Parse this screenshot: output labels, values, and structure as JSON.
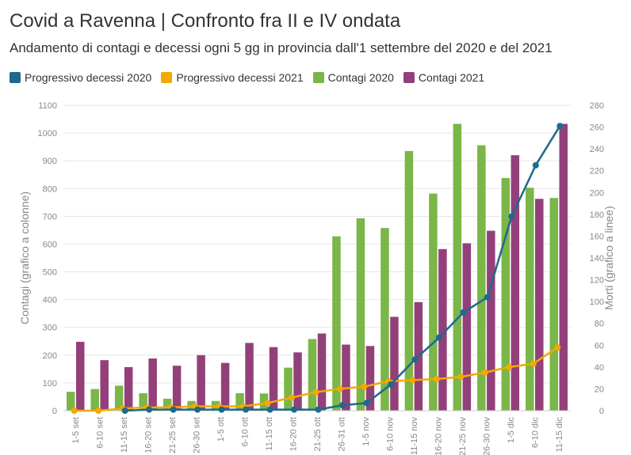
{
  "header": {
    "title": "Covid a Ravenna | Confronto fra II e IV ondata",
    "subtitle": "Andamento di contagi e decessi ogni 5 gg in provincia dall'1 settembre del 2020 e del 2021"
  },
  "legend": [
    {
      "label": "Progressivo decessi 2020",
      "color": "#1e6a8d"
    },
    {
      "label": "Progressivo decessi 2021",
      "color": "#f2a900"
    },
    {
      "label": "Contagi 2020",
      "color": "#7ab648"
    },
    {
      "label": "Contagi 2021",
      "color": "#93407a"
    }
  ],
  "chart_data": {
    "type": "bar",
    "categories": [
      "1-5 set",
      "6-10 set",
      "11-15 set",
      "16-20 set",
      "21-25 set",
      "26-30 set",
      "1-5 ott",
      "6-10 ott",
      "11-15 ott",
      "16-20 ott",
      "21-25 ott",
      "26-31 ott",
      "1-5 nov",
      "6-10 nov",
      "11-15 nov",
      "16-20 nov",
      "21-25 nov",
      "26-30 nov",
      "1-5 dic",
      "6-10 dic",
      "11-15 dic"
    ],
    "ylabel": "Contagi (grafico a colonne)",
    "y2label": "Morti (grafico a linee)",
    "ylim": [
      0,
      1100
    ],
    "y2lim": [
      0,
      280
    ],
    "yticks": [
      0,
      100,
      200,
      300,
      400,
      500,
      600,
      700,
      800,
      900,
      1000,
      1100
    ],
    "y2ticks": [
      0,
      20,
      40,
      60,
      80,
      100,
      120,
      140,
      160,
      180,
      200,
      220,
      240,
      260,
      280
    ],
    "bar_series": [
      {
        "name": "Contagi 2020",
        "color": "#7ab648",
        "values": [
          68,
          78,
          90,
          63,
          43,
          35,
          35,
          63,
          62,
          155,
          258,
          628,
          693,
          658,
          935,
          782,
          1033,
          956,
          838,
          803,
          766
        ]
      },
      {
        "name": "Contagi 2021",
        "color": "#93407a",
        "values": [
          248,
          182,
          157,
          188,
          162,
          200,
          172,
          244,
          229,
          210,
          278,
          238,
          233,
          338,
          391,
          582,
          603,
          648,
          920,
          763,
          1033
        ]
      }
    ],
    "line_series": [
      {
        "name": "Progressivo decessi 2020",
        "color": "#1e6a8d",
        "values": [
          null,
          null,
          0,
          1,
          1,
          1,
          1,
          1,
          1,
          1,
          1,
          5,
          7,
          24,
          47,
          67,
          90,
          104,
          178,
          225,
          261
        ]
      },
      {
        "name": "Progressivo decessi 2021",
        "color": "#f2a900",
        "values": [
          0,
          0,
          2,
          3,
          3,
          4,
          4,
          4,
          7,
          12,
          17,
          20,
          22,
          27,
          28,
          29,
          31,
          35,
          40,
          43,
          58
        ]
      }
    ],
    "grid": true,
    "legend_position": "top-left"
  }
}
